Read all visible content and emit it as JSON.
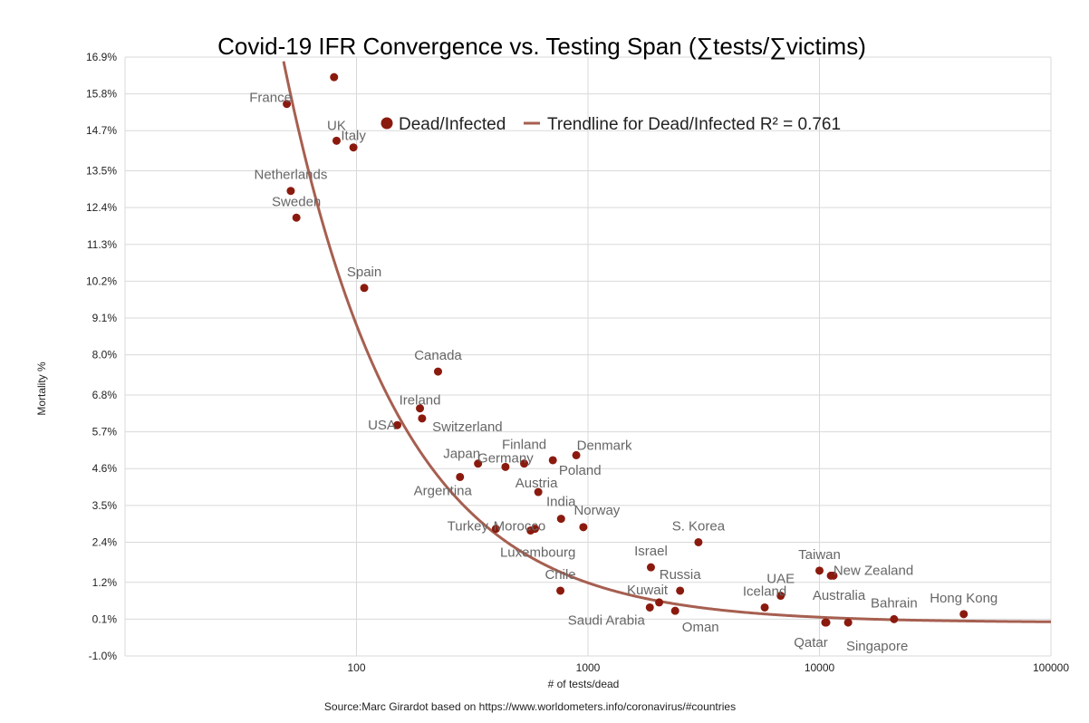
{
  "chart_data": {
    "type": "scatter",
    "title": "Covid-19 IFR Convergence vs. Testing Span (∑tests/∑victims)",
    "xlabel": "# of tests/dead",
    "ylabel": "Mortality %",
    "source": "Source:Marc Girardot based on https://www.worldometers.info/coronavirus/#countries",
    "x_scale": "log",
    "xlim": [
      10,
      100000
    ],
    "ylim": [
      -1.0,
      16.9
    ],
    "x_ticks": [
      {
        "value": 100,
        "label": "100"
      },
      {
        "value": 1000,
        "label": "1000"
      },
      {
        "value": 10000,
        "label": "10000"
      },
      {
        "value": 100000,
        "label": "100000"
      }
    ],
    "y_ticks": [
      {
        "value": -1.0,
        "label": "-1.0%"
      },
      {
        "value": 0.1,
        "label": "0.1%"
      },
      {
        "value": 1.2,
        "label": "1.2%"
      },
      {
        "value": 2.4,
        "label": "2.4%"
      },
      {
        "value": 3.5,
        "label": "3.5%"
      },
      {
        "value": 4.6,
        "label": "4.6%"
      },
      {
        "value": 5.7,
        "label": "5.7%"
      },
      {
        "value": 6.8,
        "label": "6.8%"
      },
      {
        "value": 8.0,
        "label": "8.0%"
      },
      {
        "value": 9.1,
        "label": "9.1%"
      },
      {
        "value": 10.2,
        "label": "10.2%"
      },
      {
        "value": 11.3,
        "label": "11.3%"
      },
      {
        "value": 12.4,
        "label": "12.4%"
      },
      {
        "value": 13.5,
        "label": "13.5%"
      },
      {
        "value": 14.7,
        "label": "14.7%"
      },
      {
        "value": 15.8,
        "label": "15.8%"
      },
      {
        "value": 16.9,
        "label": "16.9%"
      }
    ],
    "grid": true,
    "legend_position": "top-center",
    "series": [
      {
        "name": "Dead/Infected",
        "color": "#8b1a0e",
        "points": [
          {
            "label": "France",
            "x": 50,
            "y": 15.5
          },
          {
            "label": "",
            "x": 80,
            "y": 16.3
          },
          {
            "label": "UK",
            "x": 82,
            "y": 14.4
          },
          {
            "label": "Italy",
            "x": 97,
            "y": 14.2
          },
          {
            "label": "Netherlands",
            "x": 52,
            "y": 12.9
          },
          {
            "label": "Sweden",
            "x": 55,
            "y": 12.1
          },
          {
            "label": "Spain",
            "x": 108,
            "y": 10.0
          },
          {
            "label": "Canada",
            "x": 225,
            "y": 7.5
          },
          {
            "label": "Ireland",
            "x": 188,
            "y": 6.4
          },
          {
            "label": "Switzerland",
            "x": 192,
            "y": 6.1
          },
          {
            "label": "USA",
            "x": 150,
            "y": 5.9
          },
          {
            "label": "Japan",
            "x": 335,
            "y": 4.75
          },
          {
            "label": "Germany",
            "x": 440,
            "y": 4.65
          },
          {
            "label": "Finland",
            "x": 530,
            "y": 4.75
          },
          {
            "label": "Poland",
            "x": 705,
            "y": 4.85
          },
          {
            "label": "Denmark",
            "x": 890,
            "y": 5.0
          },
          {
            "label": "Argentina",
            "x": 280,
            "y": 4.35
          },
          {
            "label": "Austria",
            "x": 610,
            "y": 3.9
          },
          {
            "label": "India",
            "x": 765,
            "y": 3.1
          },
          {
            "label": "Norway",
            "x": 955,
            "y": 2.85
          },
          {
            "label": "Turkey",
            "x": 400,
            "y": 2.8
          },
          {
            "label": "Morocco",
            "x": 590,
            "y": 2.8
          },
          {
            "label": "Luxembourg",
            "x": 565,
            "y": 2.75
          },
          {
            "label": "Chile",
            "x": 760,
            "y": 0.95
          },
          {
            "label": "S. Korea",
            "x": 3000,
            "y": 2.4
          },
          {
            "label": "Israel",
            "x": 1870,
            "y": 1.65
          },
          {
            "label": "Russia",
            "x": 2500,
            "y": 0.95
          },
          {
            "label": "Kuwait",
            "x": 2030,
            "y": 0.6
          },
          {
            "label": "Saudi Arabia",
            "x": 1850,
            "y": 0.45
          },
          {
            "label": "Oman",
            "x": 2380,
            "y": 0.35
          },
          {
            "label": "Iceland",
            "x": 5800,
            "y": 0.45
          },
          {
            "label": "UAE",
            "x": 6800,
            "y": 0.8
          },
          {
            "label": "Taiwan",
            "x": 10000,
            "y": 1.55
          },
          {
            "label": "New Zealand",
            "x": 11500,
            "y": 1.4
          },
          {
            "label": "",
            "x": 11200,
            "y": 1.4
          },
          {
            "label": "Australia",
            "x": 10700,
            "y": 0.0
          },
          {
            "label": "Qatar",
            "x": 10600,
            "y": 0.0
          },
          {
            "label": "Singapore",
            "x": 13300,
            "y": 0.0
          },
          {
            "label": "Bahrain",
            "x": 21000,
            "y": 0.1
          },
          {
            "label": "Hong Kong",
            "x": 42000,
            "y": 0.25
          }
        ]
      },
      {
        "name": "Trendline for Dead/Infected R² = 0.761",
        "type": "trendline",
        "color": "#a65f50",
        "model": "power",
        "coefficients": {
          "a": 500,
          "b": -0.875
        }
      }
    ]
  }
}
